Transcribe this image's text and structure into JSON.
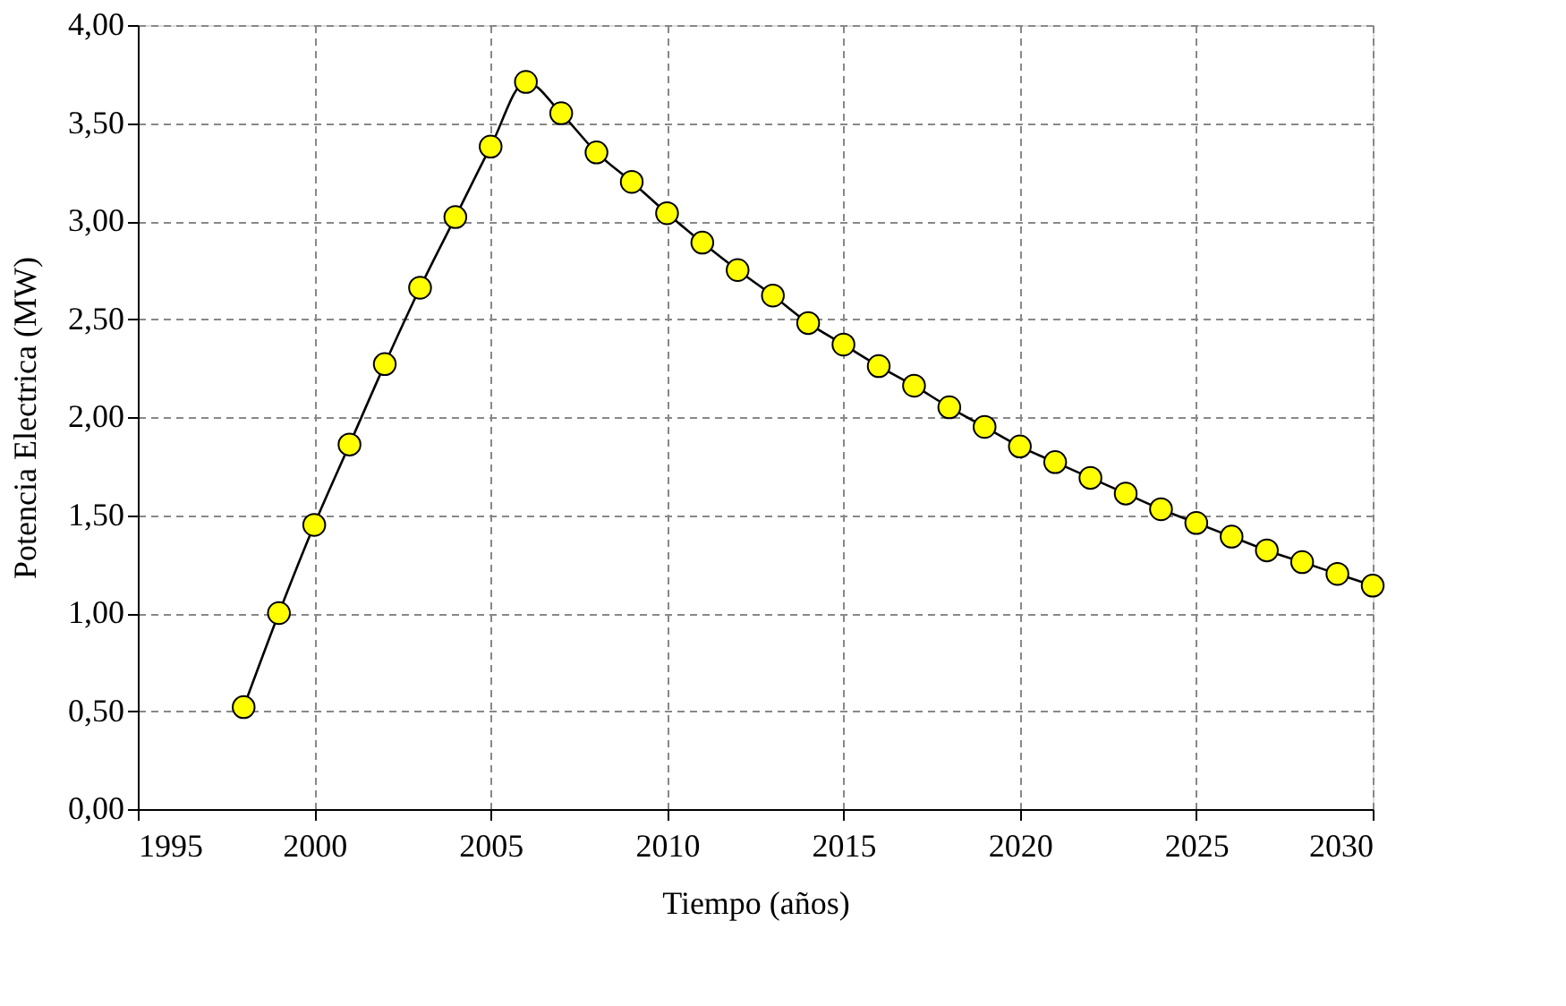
{
  "chart_data": {
    "type": "line",
    "xlabel": "Tiempo (años)",
    "ylabel": "Potencia Electrica (MW)",
    "x": [
      1998,
      1999,
      2000,
      2001,
      2002,
      2003,
      2004,
      2005,
      2006,
      2007,
      2008,
      2009,
      2010,
      2011,
      2012,
      2013,
      2014,
      2015,
      2016,
      2017,
      2018,
      2019,
      2020,
      2021,
      2022,
      2023,
      2024,
      2025,
      2026,
      2027,
      2028,
      2029,
      2030
    ],
    "series": [
      {
        "color": "#ffff00",
        "values": [
          0.52,
          1.0,
          1.45,
          1.86,
          2.27,
          2.66,
          3.02,
          3.38,
          3.71,
          3.55,
          3.35,
          3.2,
          3.04,
          2.89,
          2.75,
          2.62,
          2.48,
          2.37,
          2.26,
          2.16,
          2.05,
          1.95,
          1.85,
          1.77,
          1.69,
          1.61,
          1.53,
          1.46,
          1.39,
          1.32,
          1.26,
          1.2,
          1.14
        ]
      }
    ],
    "xlim": [
      1995,
      2030
    ],
    "xticks": [
      1995,
      2000,
      2005,
      2010,
      2015,
      2020,
      2025,
      2030
    ],
    "ylim": [
      0,
      4
    ],
    "yticks": [
      {
        "value": 0,
        "label": "0,00"
      },
      {
        "value": 0.5,
        "label": "0,50"
      },
      {
        "value": 1,
        "label": "1,00"
      },
      {
        "value": 1.5,
        "label": "1,50"
      },
      {
        "value": 2,
        "label": "2,00"
      },
      {
        "value": 2.5,
        "label": "2,50"
      },
      {
        "value": 3,
        "label": "3,00"
      },
      {
        "value": 3.5,
        "label": "3,50"
      },
      {
        "value": 4,
        "label": "4,00"
      }
    ],
    "grid": true,
    "marker": "circle",
    "line_style": "solid"
  }
}
